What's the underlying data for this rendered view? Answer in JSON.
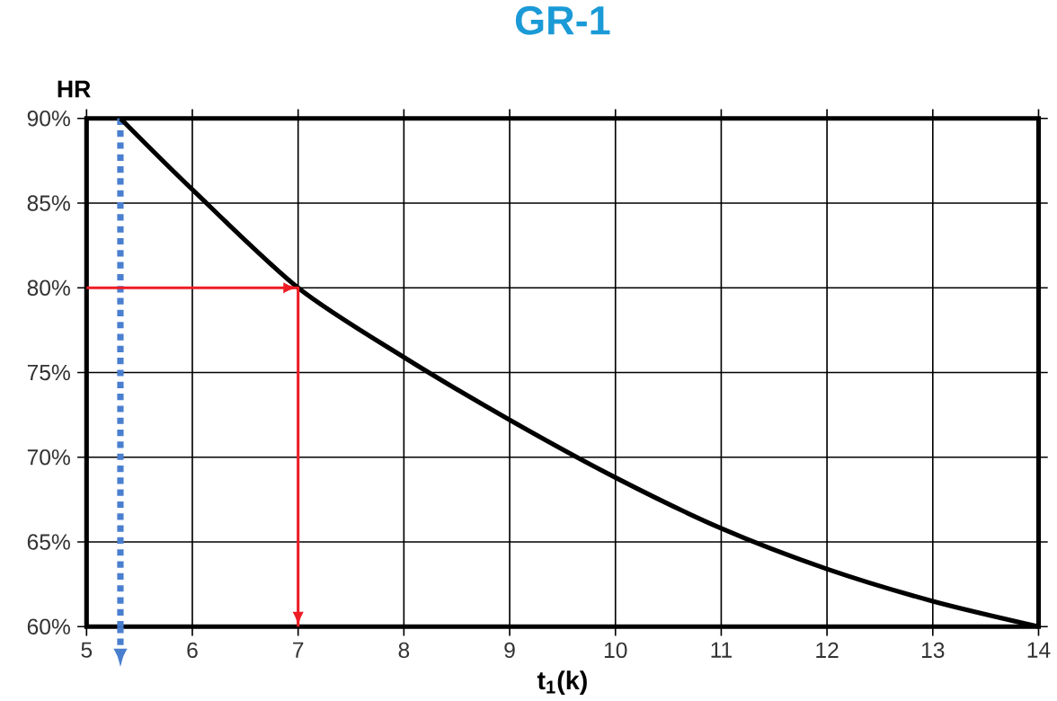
{
  "chart_data": {
    "type": "line",
    "title": "GR-1",
    "xlabel": "t$_{1}$(k)",
    "ylabel": "HR",
    "xlim": [
      5,
      14
    ],
    "ylim": [
      60,
      90
    ],
    "xticks": [
      5,
      6,
      7,
      8,
      9,
      10,
      11,
      12,
      13,
      14
    ],
    "yticks": [
      {
        "value": 60,
        "label": "60%"
      },
      {
        "value": 65,
        "label": "65%"
      },
      {
        "value": 70,
        "label": "70%"
      },
      {
        "value": 75,
        "label": "75%"
      },
      {
        "value": 80,
        "label": "80%"
      },
      {
        "value": 85,
        "label": "85%"
      },
      {
        "value": 90,
        "label": "90%"
      }
    ],
    "grid": true,
    "marker": "none",
    "series": [
      {
        "color": "#000000",
        "x": [
          5.32,
          6,
          7,
          8,
          9,
          10,
          11,
          12,
          13,
          14
        ],
        "values": [
          90,
          85.8,
          80,
          75.9,
          72.2,
          68.8,
          65.8,
          63.4,
          61.5,
          60
        ]
      },
      {
        "color": "#ee1c25",
        "x": [
          5,
          7,
          7
        ],
        "values": [
          80,
          80,
          60
        ]
      }
    ],
    "ref_lines": [
      {
        "axis": "x",
        "value": 5.32,
        "color": "#4a7fd0",
        "line_style": "dotted"
      }
    ]
  }
}
